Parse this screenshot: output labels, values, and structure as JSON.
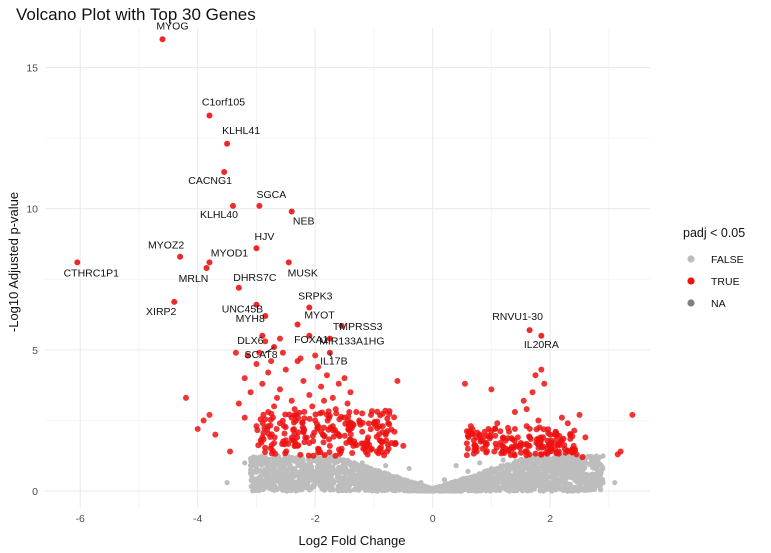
{
  "chart_data": {
    "type": "scatter",
    "title": "Volcano Plot with Top 30 Genes",
    "xlabel": "Log2 Fold Change",
    "ylabel": "-Log10 Adjusted p-value",
    "xlim": [
      -6.6,
      3.7
    ],
    "ylim": [
      -0.6,
      16.4
    ],
    "x_ticks": [
      -6,
      -4,
      -2,
      0,
      2
    ],
    "y_ticks": [
      0,
      5,
      10,
      15
    ],
    "grid": true,
    "legend": {
      "title": "padj < 0.05",
      "position": "right",
      "items": [
        {
          "label": "FALSE",
          "color": "#bdbdbd"
        },
        {
          "label": "TRUE",
          "color": "#ee1111"
        },
        {
          "label": "NA",
          "color": "#7f7f7f"
        }
      ]
    },
    "colors": {
      "significant": "#ee1111",
      "not_significant": "#bdbdbd"
    },
    "labeled_genes": [
      {
        "gene": "MYOG",
        "x": -4.6,
        "y": 16.0
      },
      {
        "gene": "C1orf105",
        "x": -3.8,
        "y": 13.3
      },
      {
        "gene": "KLHL41",
        "x": -3.5,
        "y": 12.3
      },
      {
        "gene": "CACNG1",
        "x": -3.55,
        "y": 11.3
      },
      {
        "gene": "SGCA",
        "x": -2.95,
        "y": 10.1
      },
      {
        "gene": "KLHL40",
        "x": -3.4,
        "y": 10.1
      },
      {
        "gene": "NEB",
        "x": -2.4,
        "y": 9.9
      },
      {
        "gene": "HJV",
        "x": -3.0,
        "y": 8.6
      },
      {
        "gene": "MYOZ2",
        "x": -4.3,
        "y": 8.3
      },
      {
        "gene": "MYOD1",
        "x": -3.8,
        "y": 8.1
      },
      {
        "gene": "CTHRC1P1",
        "x": -6.05,
        "y": 8.1
      },
      {
        "gene": "MRLN",
        "x": -3.85,
        "y": 7.9
      },
      {
        "gene": "MUSK",
        "x": -2.45,
        "y": 8.1
      },
      {
        "gene": "DHRS7C",
        "x": -3.3,
        "y": 7.2
      },
      {
        "gene": "UNC45B",
        "x": -3.0,
        "y": 6.6
      },
      {
        "gene": "SRPK3",
        "x": -2.1,
        "y": 6.5
      },
      {
        "gene": "XIRP2",
        "x": -4.4,
        "y": 6.7
      },
      {
        "gene": "MYH8",
        "x": -2.85,
        "y": 6.2
      },
      {
        "gene": "MYOT",
        "x": -2.3,
        "y": 5.9
      },
      {
        "gene": "TMPRSS3",
        "x": -1.55,
        "y": 5.85
      },
      {
        "gene": "DLX6",
        "x": -2.9,
        "y": 5.5
      },
      {
        "gene": "FOXA1",
        "x": -2.1,
        "y": 5.5
      },
      {
        "gene": "MIR133A1HG",
        "x": -1.75,
        "y": 5.4
      },
      {
        "gene": "SCAT8",
        "x": -2.7,
        "y": 5.1
      },
      {
        "gene": "IL17B",
        "x": -1.75,
        "y": 4.9
      },
      {
        "gene": "RNVU1-30",
        "x": 1.65,
        "y": 5.7
      },
      {
        "gene": "IL20RA",
        "x": 1.85,
        "y": 5.5
      }
    ],
    "labels": {
      "MYOG": "MYOG",
      "C1orf105": "C1orf105",
      "KLHL41": "KLHL41",
      "CACNG1": "CACNG1",
      "SGCA": "SGCA",
      "KLHL40": "KLHL40",
      "NEB": "NEB",
      "HJV": "HJV",
      "MYOZ2": "MYOZ2",
      "MYOD1": "MYOD1",
      "CTHRC1P1": "CTHRC1P1",
      "MRLN": "MRLN",
      "MUSK": "MUSK",
      "DHRS7C": "DHRS7C",
      "UNC45B": "UNC45B",
      "SRPK3": "SRPK3",
      "XIRP2": "XIRP2",
      "MYH8": "MYH8",
      "MYOT": "MYOT",
      "TMPRSS3": "TMPRSS3",
      "DLX6": "DLX6",
      "FOXA1": "FOXA1",
      "MIR133A1HG": "MIR133A1HG",
      "SCAT8": "SCAT8",
      "IL17B": "IL17B",
      "RNVU1-30": "RNVU1-30",
      "IL20RA": "IL20RA"
    },
    "significant_points": [
      [
        -4.0,
        2.2
      ],
      [
        -4.2,
        3.3
      ],
      [
        -3.8,
        2.7
      ],
      [
        -3.7,
        2.0
      ],
      [
        -3.9,
        2.5
      ],
      [
        -3.45,
        1.4
      ],
      [
        -3.3,
        3.1
      ],
      [
        -3.2,
        4.0
      ],
      [
        -3.1,
        3.5
      ],
      [
        -3.0,
        4.5
      ],
      [
        -2.9,
        3.8
      ],
      [
        -2.8,
        4.2
      ],
      [
        -2.7,
        3.0
      ],
      [
        -2.6,
        3.6
      ],
      [
        -2.5,
        4.3
      ],
      [
        -2.4,
        3.2
      ],
      [
        -2.3,
        4.6
      ],
      [
        -2.2,
        3.9
      ],
      [
        -2.1,
        3.4
      ],
      [
        -2.0,
        4.8
      ],
      [
        -1.9,
        3.7
      ],
      [
        -1.8,
        4.1
      ],
      [
        -1.7,
        3.3
      ],
      [
        -1.6,
        3.8
      ],
      [
        -1.5,
        4.0
      ],
      [
        -1.4,
        3.5
      ],
      [
        -2.8,
        2.8
      ],
      [
        -2.6,
        2.4
      ],
      [
        -2.4,
        2.6
      ],
      [
        -2.2,
        2.2
      ],
      [
        -2.0,
        2.5
      ],
      [
        -1.9,
        2.1
      ],
      [
        -1.8,
        2.7
      ],
      [
        -1.7,
        2.3
      ],
      [
        -1.6,
        2.0
      ],
      [
        -1.5,
        2.6
      ],
      [
        -1.4,
        2.2
      ],
      [
        -1.3,
        2.8
      ],
      [
        -1.2,
        2.1
      ],
      [
        -1.1,
        1.9
      ],
      [
        -1.0,
        2.4
      ],
      [
        -0.9,
        1.8
      ],
      [
        -0.8,
        2.0
      ],
      [
        -0.7,
        1.7
      ],
      [
        -0.6,
        3.9
      ],
      [
        -0.5,
        1.6
      ],
      [
        -3.0,
        2.3
      ],
      [
        -2.9,
        1.9
      ],
      [
        -2.7,
        1.7
      ],
      [
        -2.5,
        1.8
      ],
      [
        -2.3,
        1.6
      ],
      [
        -2.1,
        1.7
      ],
      [
        -1.95,
        1.5
      ],
      [
        -1.75,
        1.6
      ],
      [
        -1.55,
        1.5
      ],
      [
        -1.35,
        1.6
      ],
      [
        -1.15,
        1.5
      ],
      [
        -0.95,
        1.4
      ],
      [
        -0.75,
        1.5
      ],
      [
        -3.2,
        2.6
      ],
      [
        -2.65,
        3.3
      ],
      [
        -2.35,
        2.9
      ],
      [
        -2.05,
        3.0
      ],
      [
        -1.85,
        3.2
      ],
      [
        -1.65,
        2.9
      ],
      [
        -1.45,
        3.1
      ],
      [
        -1.25,
        2.5
      ],
      [
        -1.05,
        2.7
      ],
      [
        -0.85,
        2.3
      ],
      [
        -0.65,
        2.1
      ],
      [
        -2.95,
        4.9
      ],
      [
        -2.75,
        4.6
      ],
      [
        -2.55,
        4.9
      ],
      [
        -2.25,
        4.7
      ],
      [
        -1.95,
        4.4
      ],
      [
        -3.35,
        4.9
      ],
      [
        -3.15,
        4.8
      ],
      [
        -2.85,
        5.3
      ],
      [
        -2.6,
        5.4
      ],
      [
        0.55,
        3.8
      ],
      [
        0.6,
        1.5
      ],
      [
        0.7,
        1.8
      ],
      [
        0.8,
        2.0
      ],
      [
        0.9,
        1.6
      ],
      [
        1.0,
        3.6
      ],
      [
        1.1,
        2.4
      ],
      [
        1.2,
        1.9
      ],
      [
        1.3,
        2.1
      ],
      [
        1.4,
        2.8
      ],
      [
        1.5,
        1.7
      ],
      [
        1.6,
        2.3
      ],
      [
        1.7,
        3.5
      ],
      [
        1.8,
        2.5
      ],
      [
        1.9,
        3.8
      ],
      [
        2.0,
        2.0
      ],
      [
        2.1,
        1.8
      ],
      [
        2.2,
        2.6
      ],
      [
        2.3,
        2.4
      ],
      [
        2.4,
        1.6
      ],
      [
        2.5,
        2.7
      ],
      [
        2.6,
        1.9
      ],
      [
        3.15,
        1.3
      ],
      [
        3.2,
        1.4
      ],
      [
        3.4,
        2.7
      ],
      [
        1.75,
        4.1
      ],
      [
        1.85,
        4.3
      ],
      [
        1.55,
        3.2
      ],
      [
        1.25,
        1.5
      ],
      [
        0.95,
        2.2
      ],
      [
        0.75,
        1.4
      ],
      [
        0.65,
        2.3
      ],
      [
        0.85,
        1.5
      ],
      [
        1.05,
        1.4
      ],
      [
        1.15,
        1.7
      ],
      [
        1.35,
        1.5
      ],
      [
        1.45,
        1.9
      ],
      [
        1.65,
        1.6
      ],
      [
        1.95,
        1.5
      ],
      [
        2.15,
        1.4
      ],
      [
        2.25,
        1.5
      ],
      [
        2.45,
        1.3
      ],
      [
        2.55,
        1.2
      ],
      [
        1.6,
        2.9
      ],
      [
        1.4,
        2.2
      ]
    ],
    "nonsignificant_points": [
      [
        -3.2,
        1.0
      ],
      [
        -3.1,
        0.9
      ],
      [
        -2.8,
        0.8
      ],
      [
        -2.5,
        1.1
      ],
      [
        -2.2,
        1.0
      ],
      [
        -2.0,
        0.7
      ],
      [
        -1.8,
        1.2
      ],
      [
        -1.5,
        0.9
      ],
      [
        -1.2,
        1.0
      ],
      [
        -1.0,
        0.6
      ],
      [
        -0.8,
        0.9
      ],
      [
        -0.6,
        0.5
      ],
      [
        -0.4,
        0.8
      ],
      [
        -0.2,
        0.3
      ],
      [
        0.0,
        0.1
      ],
      [
        0.2,
        0.4
      ],
      [
        0.4,
        0.9
      ],
      [
        0.6,
        0.7
      ],
      [
        0.8,
        1.0
      ],
      [
        1.0,
        0.8
      ],
      [
        1.2,
        1.1
      ],
      [
        1.4,
        0.6
      ],
      [
        1.6,
        0.9
      ],
      [
        1.8,
        1.0
      ],
      [
        2.0,
        0.5
      ],
      [
        2.2,
        0.7
      ],
      [
        2.5,
        0.4
      ],
      [
        2.9,
        0.3
      ],
      [
        3.1,
        0.3
      ],
      [
        -3.5,
        0.3
      ],
      [
        -2.6,
        0.4
      ],
      [
        -1.3,
        0.4
      ],
      [
        -0.5,
        0.2
      ],
      [
        0.5,
        0.3
      ],
      [
        1.5,
        0.3
      ]
    ]
  }
}
